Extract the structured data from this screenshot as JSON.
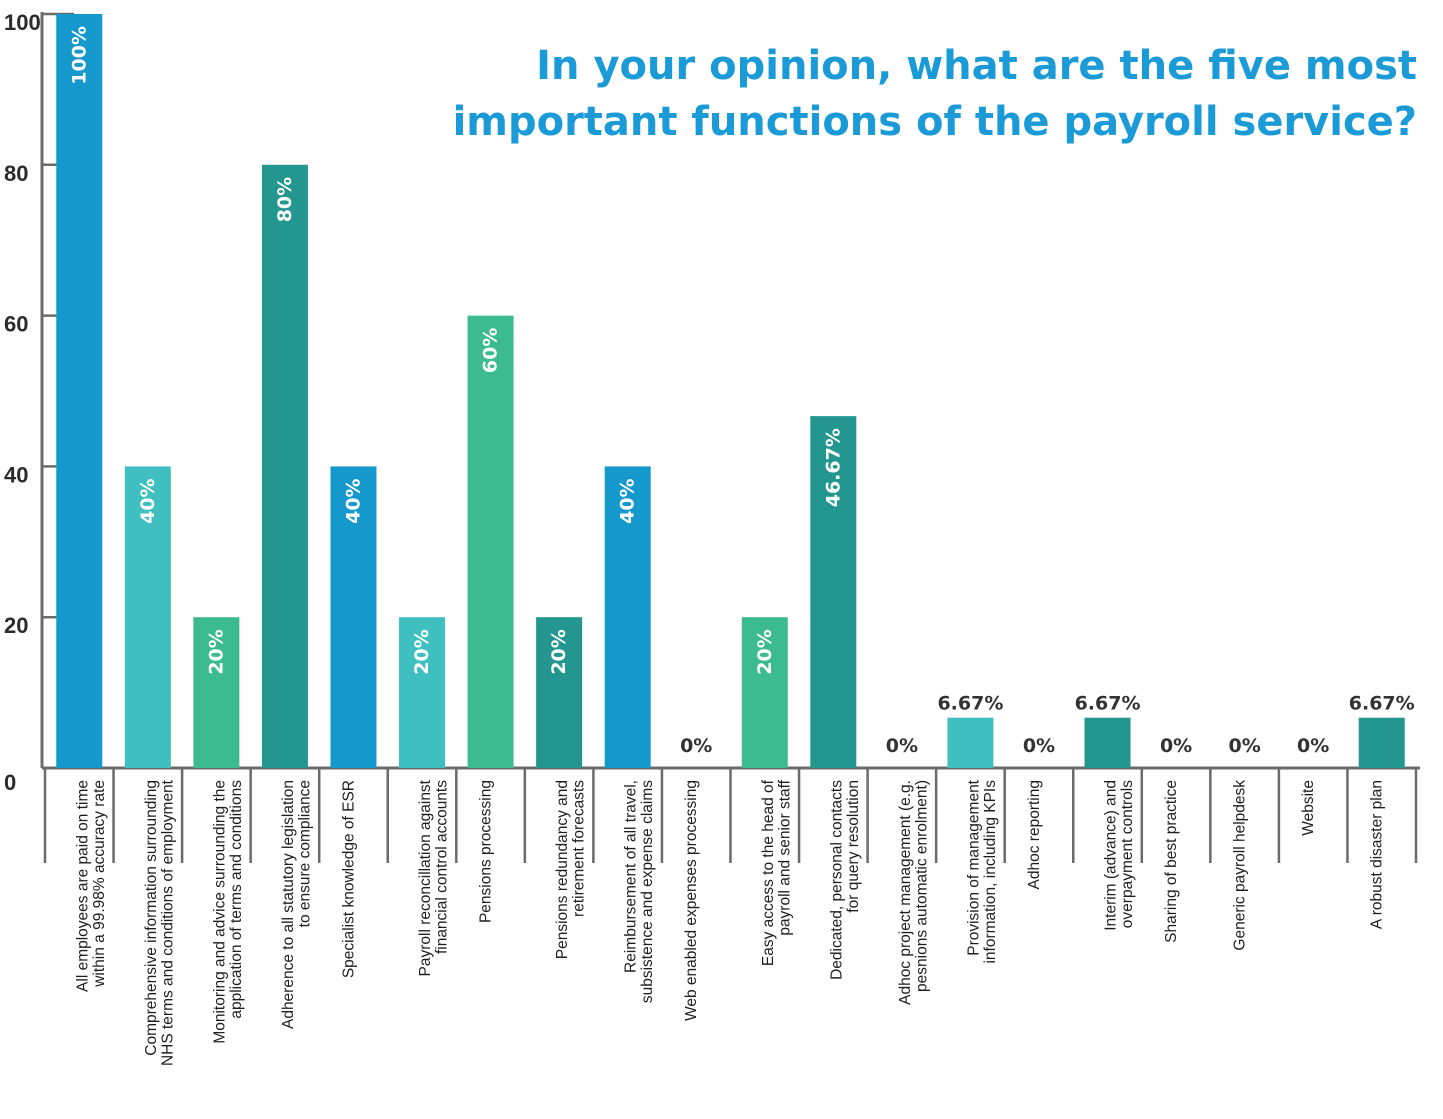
{
  "chart_data": {
    "type": "bar",
    "title_lines": [
      "In your opinion, what are the five most",
      "important functions of the payroll service?"
    ],
    "ylim": [
      0,
      100
    ],
    "yticks": [
      "0",
      "20",
      "40",
      "60",
      "80",
      "100"
    ],
    "categories": [
      [
        "All employees are paid on time",
        "within a 99.98% accuracy rate"
      ],
      [
        "Comprehensive information surrounding",
        "NHS terms and conditions of employment"
      ],
      [
        "Monitoring and advice surrounding the",
        "application of terms and conditions"
      ],
      [
        "Adherence to all statutory legislation",
        "to ensure compliance"
      ],
      [
        "Specialist knowledge of ESR"
      ],
      [
        "Payroll reconcillation against",
        "financial control accounts"
      ],
      [
        "Pensions processing"
      ],
      [
        "Pensions redundancy and",
        "retirement forecasts"
      ],
      [
        "Reimbursement of all travel,",
        "subsistence and expense claims"
      ],
      [
        "Web enabled expenses processing"
      ],
      [
        "Easy access to the head of",
        "payroll and senior staff"
      ],
      [
        "Dedicated, personal contacts",
        "for query resolution"
      ],
      [
        "Adhoc project management (e.g.",
        "pesnions automatic enrolment)"
      ],
      [
        "Provision of management",
        "information, including KPIs"
      ],
      [
        "Adhoc reporting"
      ],
      [
        "Interim (advance) and",
        "overpayment controls"
      ],
      [
        "Sharing of best practice"
      ],
      [
        "Generic payroll helpdesk"
      ],
      [
        "Website"
      ],
      [
        "A robust disaster plan"
      ]
    ],
    "values": [
      100,
      40,
      20,
      80,
      40,
      20,
      60,
      20,
      40,
      0,
      20,
      46.67,
      0,
      6.67,
      0,
      6.67,
      0,
      0,
      0,
      6.67
    ],
    "value_labels": [
      "100%",
      "40%",
      "20%",
      "80%",
      "40%",
      "20%",
      "60%",
      "20%",
      "40%",
      "0%",
      "20%",
      "46.67%",
      "0%",
      "6.67%",
      "0%",
      "6.67%",
      "0%",
      "0%",
      "0%",
      "6.67%"
    ],
    "colors": [
      "#1599cc",
      "#3fbfbf",
      "#3dbb90",
      "#23978f",
      "#1599cc",
      "#3fbfbf",
      "#3dbb90",
      "#23978f",
      "#1599cc",
      "#3fbfbf",
      "#3dbb90",
      "#23978f",
      "#1599cc",
      "#3fbfbf",
      "#3dbb90",
      "#23978f",
      "#1599cc",
      "#3fbfbf",
      "#3dbb90",
      "#23978f"
    ],
    "grid": false,
    "legend": "none"
  }
}
